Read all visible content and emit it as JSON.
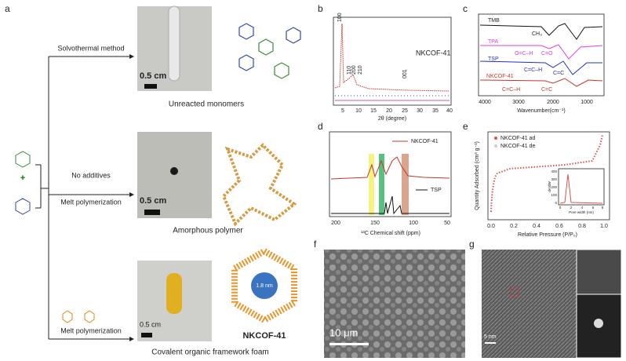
{
  "panel_a": {
    "label": "a",
    "plus": "+",
    "routes": [
      {
        "method": "Solvothermal method",
        "scale": "0.5 cm",
        "caption": "Unreacted monomers"
      },
      {
        "method_top": "No additives",
        "method": "Melt polymerization",
        "scale": "0.5 cm",
        "caption": "Amorphous polymer"
      },
      {
        "method": "Melt polymerization",
        "scale": "0.5 cm",
        "caption": "Covalent organic framework foam",
        "product": "NKCOF-41",
        "pore": "1.8 nm"
      }
    ]
  },
  "panel_b": {
    "label": "b",
    "sample": "NKCOF-41",
    "peaks": [
      "100",
      "110",
      "200",
      "210",
      "001"
    ],
    "xticks": [
      "5",
      "10",
      "15",
      "20",
      "25",
      "30",
      "35",
      "40"
    ],
    "xlabel": "2θ (degree)"
  },
  "panel_c": {
    "label": "c",
    "traces": [
      "TMB",
      "TPA",
      "TSP",
      "NKCOF-41"
    ],
    "annotations": [
      "CH₃",
      "O=C–H",
      "C=O",
      "C=C–H",
      "C=C",
      "C=C–H",
      "C=C"
    ],
    "xticks": [
      "4000",
      "3000",
      "2000",
      "1000"
    ],
    "xlabel": "Wavenumber(cm⁻¹)"
  },
  "panel_d": {
    "label": "d",
    "legend": [
      "NKCOF-41",
      "TSP"
    ],
    "xticks": [
      "200",
      "150",
      "100",
      "50"
    ],
    "xlabel": "¹³C Chemical shift (ppm)"
  },
  "panel_e": {
    "label": "e",
    "legend": [
      "NKCOF-41 ad",
      "NKCOF-41 de"
    ],
    "ylabel": "Quantity Adsorbed (cm³ g⁻¹)",
    "xticks": [
      "0.0",
      "0.2",
      "0.4",
      "0.6",
      "0.8",
      "1.0"
    ],
    "xlabel": "Relative Pressure (P/P₀)",
    "inset": {
      "ylabel": "dA/dW",
      "yticks": [
        "0",
        "100",
        "200",
        "300",
        "400"
      ],
      "xticks": [
        "0",
        "2",
        "4",
        "6",
        "8"
      ],
      "xlabel": "Pore width (nm)"
    }
  },
  "panel_f": {
    "label": "f",
    "scale": "10 μm"
  },
  "panel_g": {
    "label": "g",
    "scale": "5 nm"
  }
}
